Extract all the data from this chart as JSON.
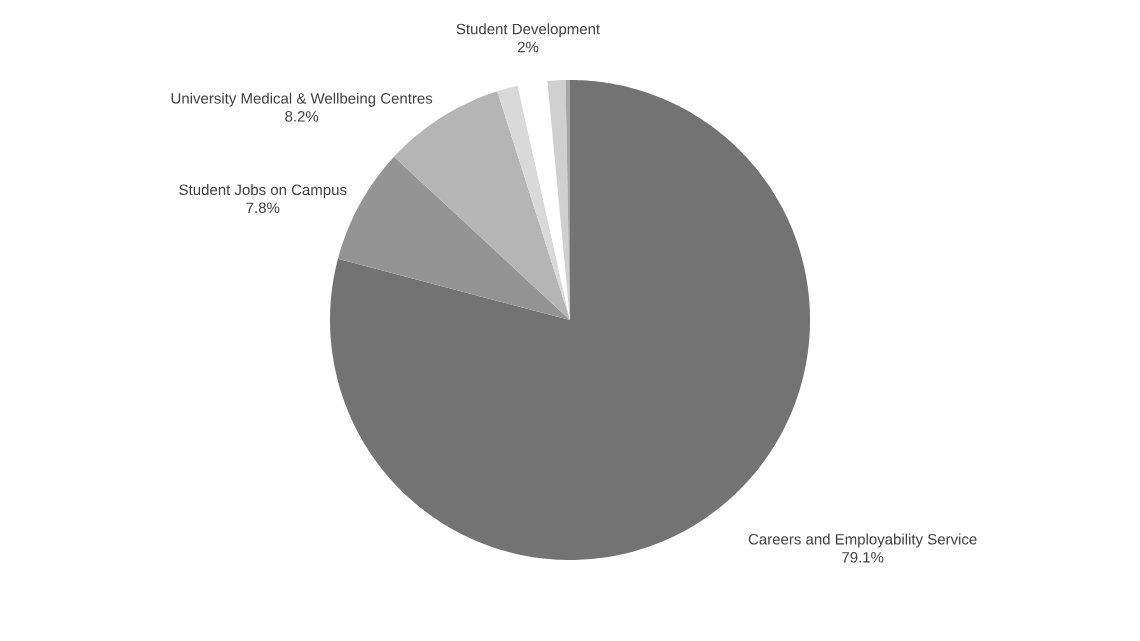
{
  "chart_data": {
    "type": "pie",
    "categories": [
      "Careers and Employability Service",
      "Student Jobs on Campus",
      "University Medical & Wellbeing Centres",
      null,
      "Student Development",
      null,
      null
    ],
    "values": [
      79.1,
      7.8,
      8.2,
      1.4,
      2,
      1.2,
      0.3
    ],
    "value_labels": [
      "79.1%",
      "7.8%",
      "8.2%",
      null,
      "2%",
      null,
      null
    ],
    "colors": [
      "#737373",
      "#949494",
      "#b5b5b5",
      "#d9d9d9",
      "#ffffff",
      "#cfcfcf",
      "#a6a6a6"
    ],
    "legend": false
  }
}
